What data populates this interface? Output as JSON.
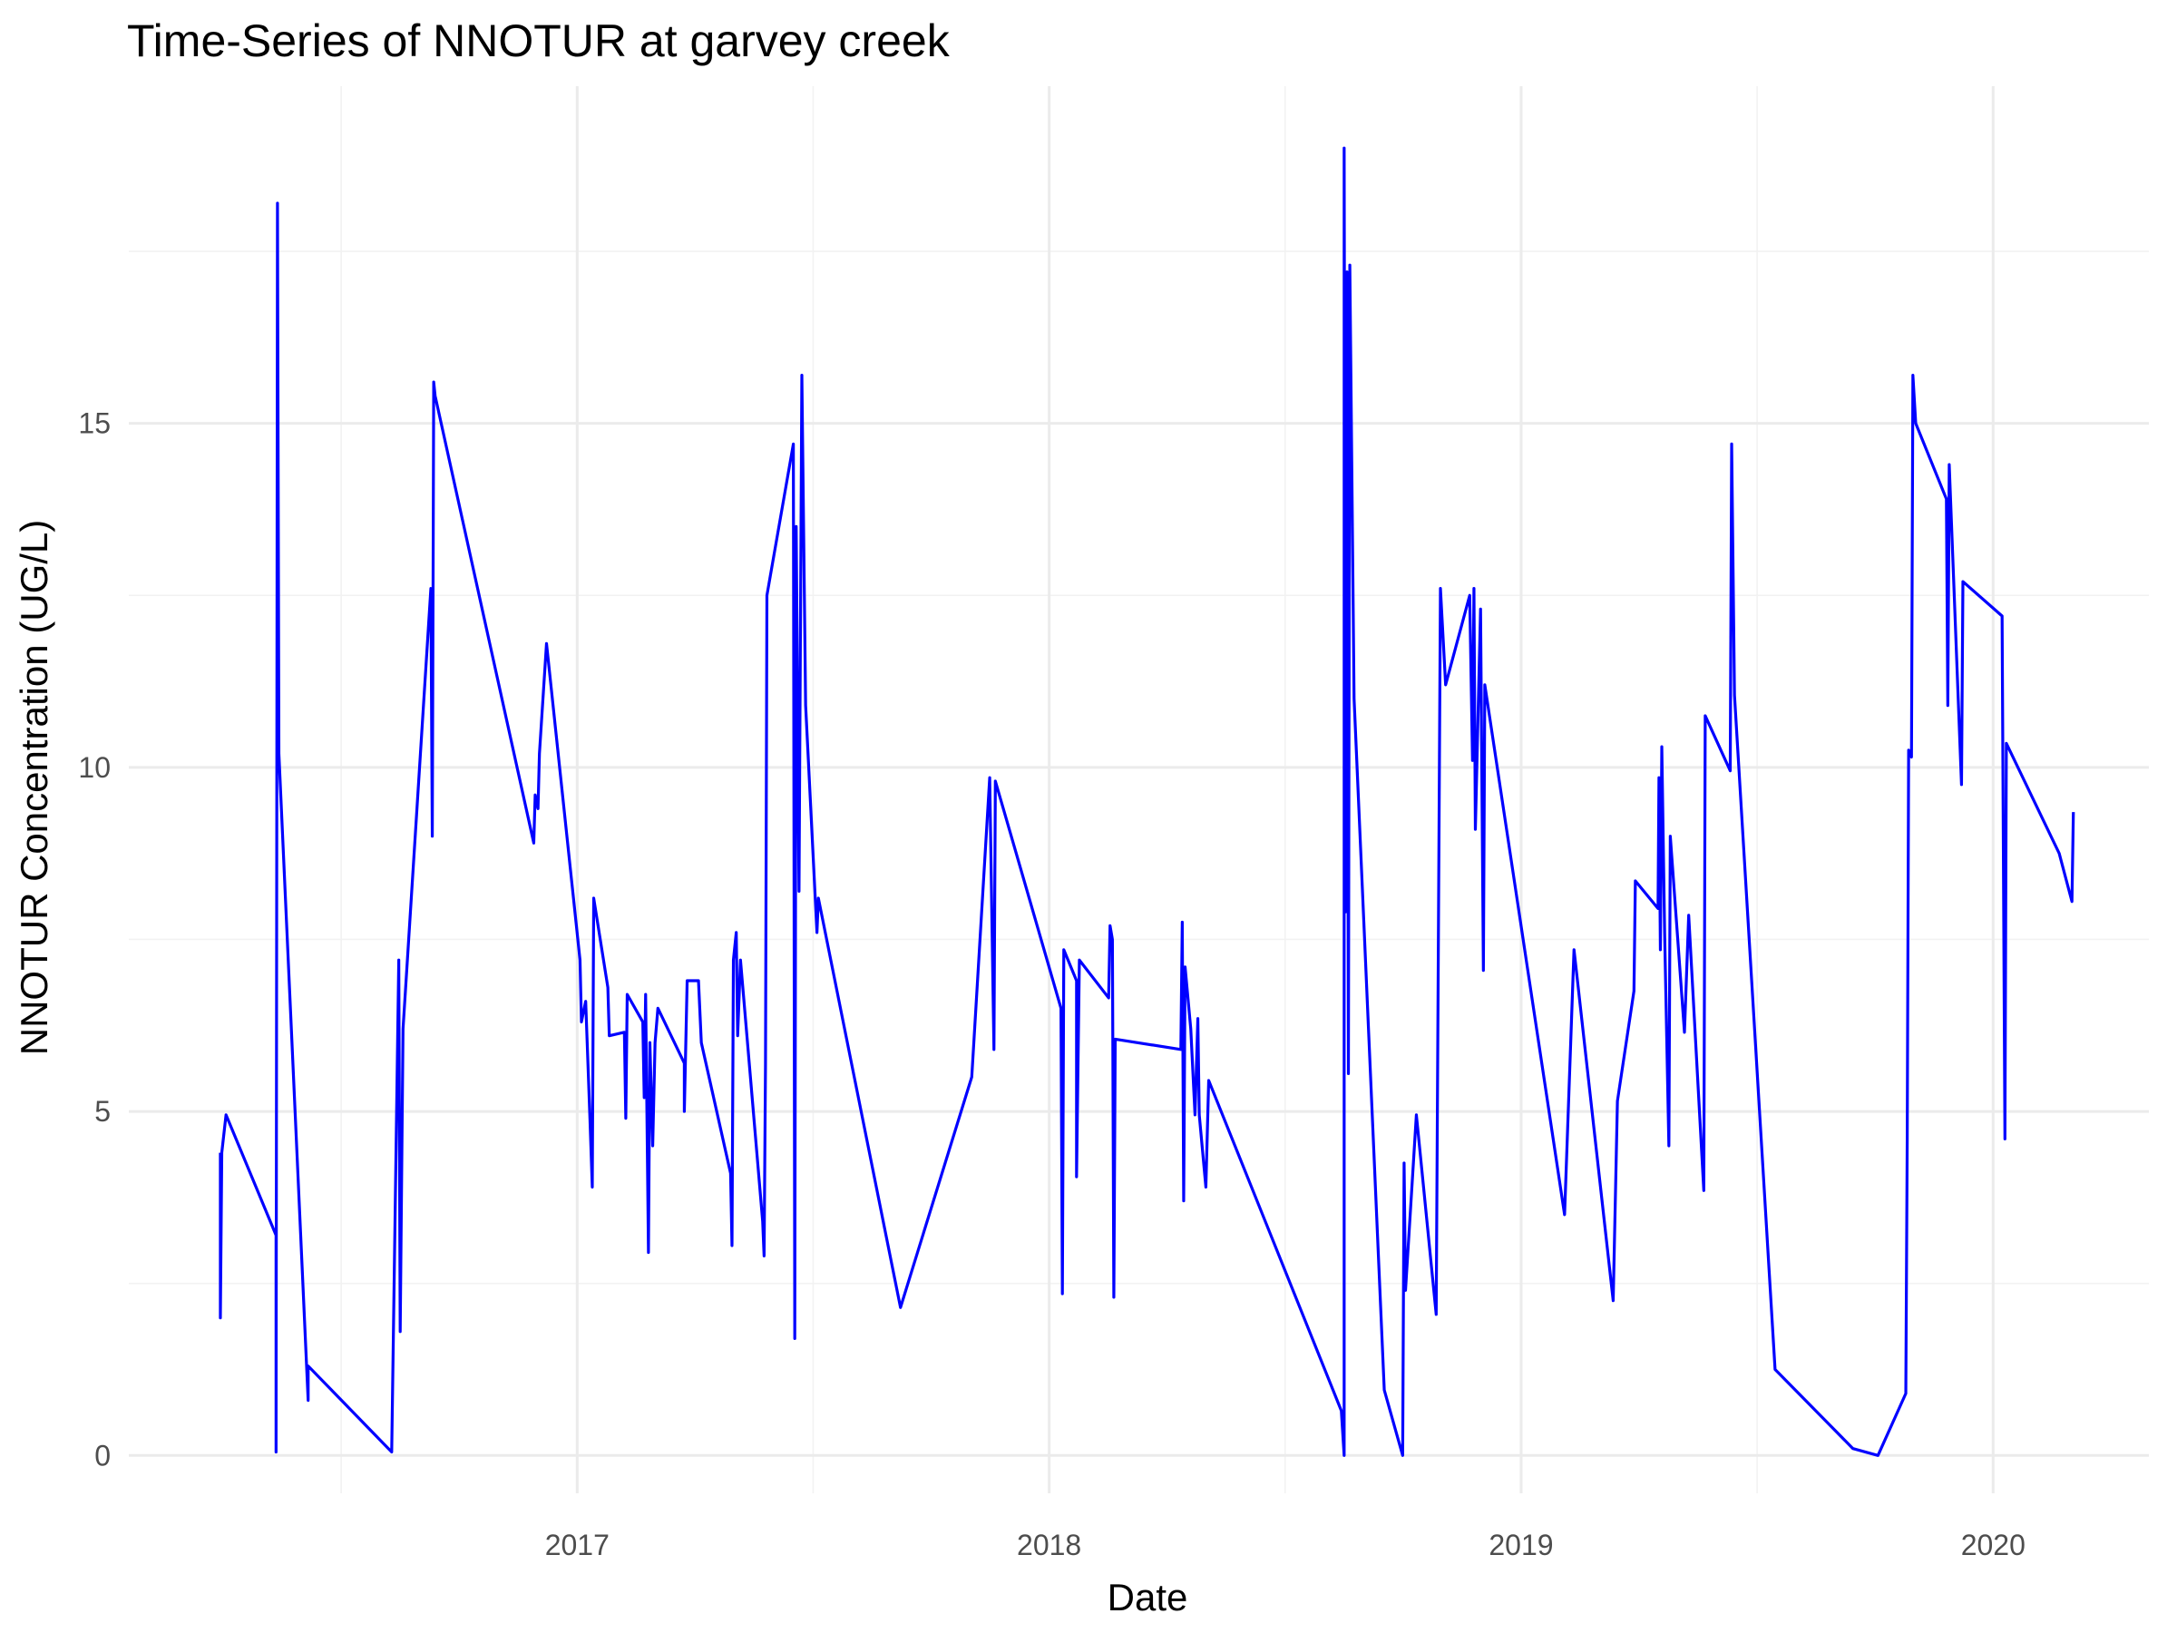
{
  "chart_data": {
    "type": "line",
    "title": "Time-Series of NNOTUR at garvey creek",
    "x_label": "Date",
    "y_label": "NNOTUR Concentration (UG/L)",
    "color": "#0000ff",
    "grid": true,
    "xlim": [
      2016.05,
      2020.33
    ],
    "xticks": [
      2017,
      2018,
      2019,
      2020
    ],
    "ylim": [
      -0.55,
      19.9
    ],
    "yticks": [
      0,
      5,
      10,
      15
    ],
    "x": [
      2016.244,
      2016.244,
      2016.247,
      2016.256,
      2016.362,
      2016.362,
      2016.365,
      2016.368,
      2016.43,
      2016.43,
      2016.607,
      2016.622,
      2016.625,
      2016.631,
      2016.69,
      2016.693,
      2016.696,
      2016.699,
      2016.908,
      2016.911,
      2016.917,
      2016.92,
      2016.935,
      2017.006,
      2017.009,
      2017.018,
      2017.027,
      2017.032,
      2017.035,
      2017.065,
      2017.068,
      2017.1,
      2017.103,
      2017.106,
      2017.139,
      2017.142,
      2017.145,
      2017.151,
      2017.154,
      2017.16,
      2017.165,
      2017.171,
      2017.227,
      2017.227,
      2017.233,
      2017.257,
      2017.263,
      2017.325,
      2017.328,
      2017.331,
      2017.337,
      2017.34,
      2017.346,
      2017.393,
      2017.396,
      2017.399,
      2017.402,
      2017.458,
      2017.461,
      2017.464,
      2017.47,
      2017.476,
      2017.484,
      2017.508,
      2017.511,
      2017.685,
      2017.836,
      2017.874,
      2017.883,
      2017.886,
      2018.025,
      2018.028,
      2018.031,
      2018.058,
      2018.058,
      2018.064,
      2018.126,
      2018.129,
      2018.134,
      2018.137,
      2018.14,
      2018.279,
      2018.282,
      2018.285,
      2018.288,
      2018.3,
      2018.309,
      2018.315,
      2018.318,
      2018.332,
      2018.338,
      2018.619,
      2018.625,
      2018.625,
      2018.628,
      2018.631,
      2018.634,
      2018.637,
      2018.646,
      2018.71,
      2018.749,
      2018.752,
      2018.755,
      2018.778,
      2018.82,
      2018.829,
      2018.84,
      2018.891,
      2018.897,
      2018.9,
      2018.903,
      2018.914,
      2018.92,
      2018.923,
      2019.092,
      2019.112,
      2019.195,
      2019.204,
      2019.239,
      2019.242,
      2019.29,
      2019.292,
      2019.295,
      2019.298,
      2019.304,
      2019.313,
      2019.316,
      2019.346,
      2019.355,
      2019.387,
      2019.39,
      2019.443,
      2019.446,
      2019.452,
      2019.538,
      2019.703,
      2019.756,
      2019.815,
      2019.818,
      2019.821,
      2019.827,
      2019.83,
      2019.836,
      2019.901,
      2019.904,
      2019.907,
      2019.933,
      2019.936,
      2020.019,
      2020.025,
      2020.028,
      2020.14,
      2020.167,
      2020.17
    ],
    "values": [
      4.4,
      2.0,
      4.4,
      4.95,
      3.2,
      0.05,
      18.2,
      10.2,
      0.8,
      1.3,
      0.05,
      7.2,
      1.8,
      6.2,
      12.6,
      9.0,
      15.6,
      15.4,
      8.9,
      9.6,
      9.4,
      10.2,
      11.8,
      7.2,
      6.3,
      6.6,
      4.9,
      3.9,
      8.1,
      6.8,
      6.1,
      6.15,
      4.9,
      6.7,
      6.3,
      5.2,
      6.7,
      2.95,
      6.0,
      4.5,
      6.0,
      6.5,
      5.7,
      5.0,
      6.9,
      6.9,
      6.0,
      4.1,
      3.05,
      7.2,
      7.6,
      6.1,
      7.2,
      3.4,
      2.9,
      5.7,
      12.5,
      14.7,
      1.7,
      13.5,
      8.2,
      15.7,
      10.9,
      7.6,
      8.1,
      2.15,
      5.5,
      9.85,
      5.9,
      9.8,
      6.5,
      2.35,
      7.35,
      6.9,
      4.05,
      7.2,
      6.65,
      7.7,
      7.5,
      2.3,
      6.05,
      5.9,
      7.75,
      3.7,
      7.1,
      6.2,
      4.95,
      6.35,
      4.95,
      3.9,
      5.45,
      0.65,
      0.0,
      19.0,
      7.9,
      17.2,
      5.55,
      17.3,
      11.0,
      0.95,
      0.0,
      4.25,
      2.4,
      4.95,
      2.05,
      12.6,
      11.2,
      12.5,
      10.1,
      12.6,
      9.1,
      12.3,
      7.05,
      11.2,
      3.5,
      7.35,
      2.25,
      5.15,
      6.75,
      8.35,
      7.95,
      9.85,
      7.35,
      10.3,
      7.6,
      4.5,
      9.0,
      6.15,
      7.85,
      3.85,
      10.75,
      9.95,
      14.7,
      11.05,
      1.25,
      0.1,
      0.0,
      0.9,
      4.6,
      10.25,
      10.15,
      15.7,
      15.0,
      13.9,
      10.9,
      14.4,
      9.75,
      12.7,
      12.2,
      4.6,
      10.35,
      8.75,
      8.05,
      9.35
    ]
  }
}
